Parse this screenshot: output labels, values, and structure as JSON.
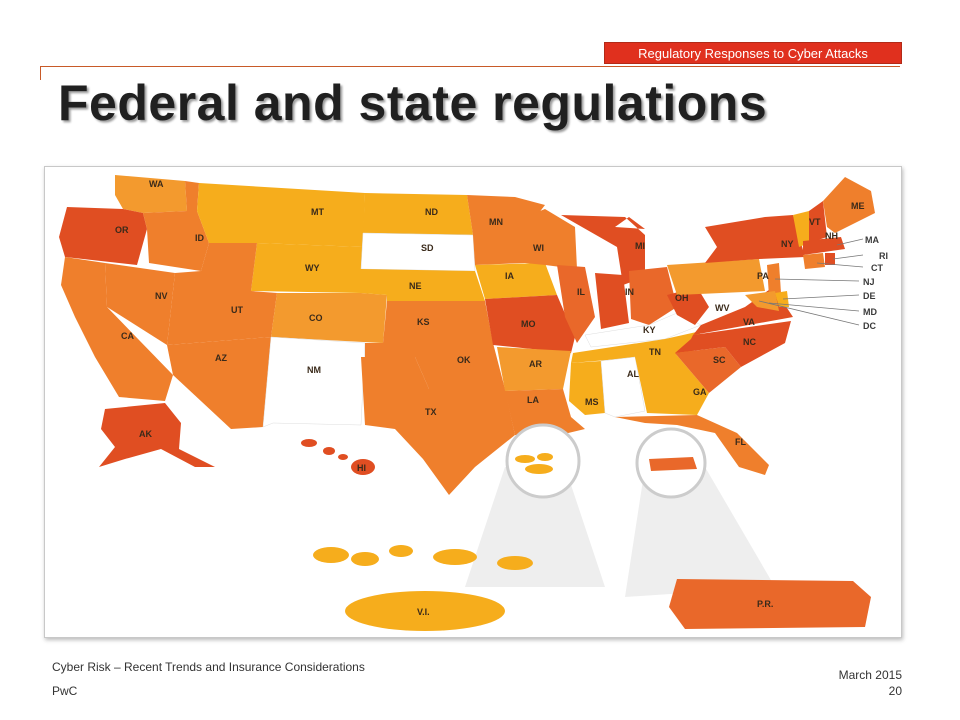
{
  "header": {
    "tag": "Regulatory Responses to Cyber Attacks",
    "title": "Federal and state regulations"
  },
  "map": {
    "colors": {
      "red": "#e04e22",
      "dark_orange": "#e9682a",
      "orange": "#ef7f2c",
      "light_orange": "#f39a2e",
      "yellow": "#f6ad1c",
      "white": "#ffffff"
    },
    "state_labels": {
      "WA": "WA",
      "OR": "OR",
      "CA": "CA",
      "ID": "ID",
      "NV": "NV",
      "MT": "MT",
      "WY": "WY",
      "UT": "UT",
      "AZ": "AZ",
      "CO": "CO",
      "NM": "NM",
      "ND": "ND",
      "SD": "SD",
      "NE": "NE",
      "KS": "KS",
      "OK": "OK",
      "TX": "TX",
      "MN": "MN",
      "IA": "IA",
      "MO": "MO",
      "AR": "AR",
      "LA": "LA",
      "WI": "WI",
      "IL": "IL",
      "MI": "MI",
      "IN": "IN",
      "OH": "OH",
      "KY": "KY",
      "TN": "TN",
      "MS": "MS",
      "AL": "AL",
      "GA": "GA",
      "FL": "FL",
      "SC": "SC",
      "NC": "NC",
      "VA": "VA",
      "WV": "WV",
      "PA": "PA",
      "NY": "NY",
      "VT": "VT",
      "NH": "NH",
      "ME": "ME",
      "MA": "MA",
      "RI": "RI",
      "CT": "CT",
      "NJ": "NJ",
      "DE": "DE",
      "MD": "MD",
      "DC": "DC",
      "AK": "AK",
      "HI": "HI",
      "VI": "V.I.",
      "PR": "P.R."
    }
  },
  "footer": {
    "subtitle": "Cyber Risk – Recent Trends and Insurance Considerations",
    "company": "PwC",
    "date": "March 2015",
    "page": "20"
  }
}
